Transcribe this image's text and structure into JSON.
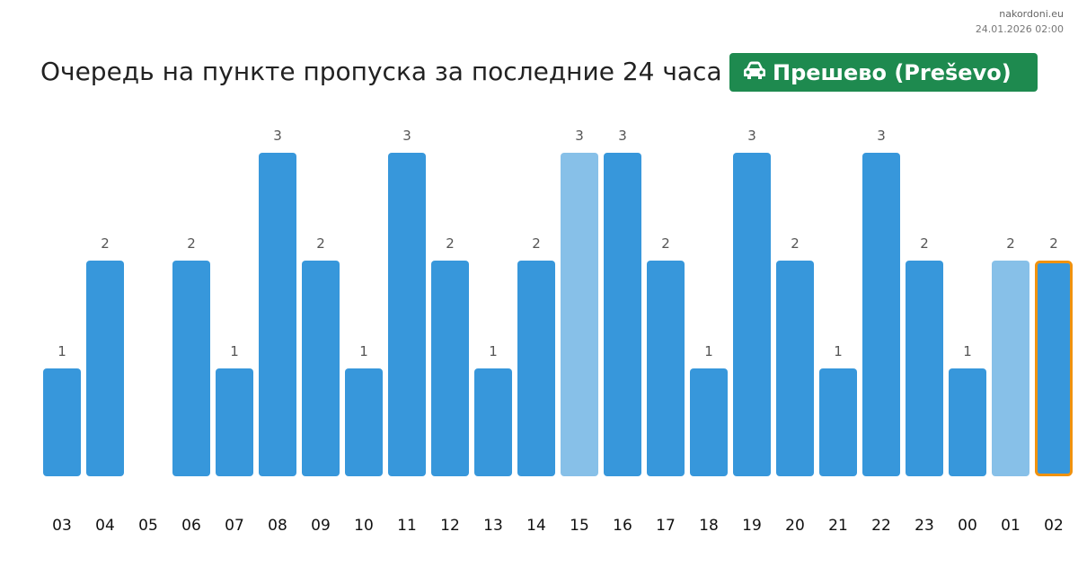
{
  "header": {
    "site": "nakordoni.eu",
    "timestamp": "24.01.2026 02:00",
    "title": "Очередь на пункте пропуска за последние 24 часа",
    "checkpoint": "Прешево (Preševo)",
    "checkpoint_icon": "car-icon",
    "checkpoint_color": "#1e8a4f"
  },
  "chart_data": {
    "type": "bar",
    "categories": [
      "03",
      "04",
      "05",
      "06",
      "07",
      "08",
      "09",
      "10",
      "11",
      "12",
      "13",
      "14",
      "15",
      "16",
      "17",
      "18",
      "19",
      "20",
      "21",
      "22",
      "23",
      "00",
      "01",
      "02"
    ],
    "values": [
      1,
      2,
      0,
      2,
      1,
      3,
      2,
      1,
      3,
      2,
      1,
      2,
      3,
      3,
      2,
      1,
      3,
      2,
      1,
      3,
      2,
      1,
      2,
      2
    ],
    "value_labels": [
      "1",
      "2",
      "",
      "2",
      "1",
      "3",
      "2",
      "1",
      "3",
      "2",
      "1",
      "2",
      "3",
      "3",
      "2",
      "1",
      "3",
      "2",
      "1",
      "3",
      "2",
      "1",
      "2",
      "2"
    ],
    "ylim": [
      0,
      3
    ],
    "grid": false,
    "colors": {
      "normal": "#3797db",
      "light": "#87c0e8",
      "highlight_border": "#f0920f",
      "label": "#555555",
      "tick": "#111111"
    },
    "light_categories": [
      "15",
      "01"
    ],
    "highlight_category": "02"
  }
}
